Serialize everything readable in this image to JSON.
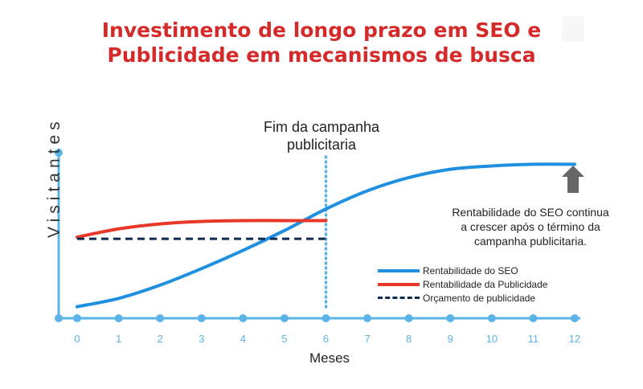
{
  "title": {
    "line1": "Investimento de longo prazo em SEO e",
    "line2": "Publicidade em mecanismos de busca"
  },
  "chart_data": {
    "type": "line",
    "xlabel": "Meses",
    "ylabel": "Visitantes",
    "x": [
      0,
      1,
      2,
      3,
      4,
      5,
      6,
      7,
      8,
      9,
      10,
      11,
      12
    ],
    "tick_labels": [
      "0",
      "1",
      "2",
      "3",
      "4",
      "5",
      "6",
      "7",
      "8",
      "9",
      "10",
      "11",
      "12"
    ],
    "xlim": [
      0,
      12
    ],
    "ylim": [
      0,
      100
    ],
    "series": [
      {
        "name": "Rentabilidade do SEO",
        "color": "#1f8fe0",
        "style": "solid",
        "x": [
          0,
          1,
          2,
          3,
          4,
          5,
          6,
          7,
          8,
          9,
          10,
          11,
          12
        ],
        "y": [
          7,
          12,
          20,
          30,
          41,
          53,
          66,
          77,
          85,
          90,
          92,
          93,
          93
        ]
      },
      {
        "name": "Rentabilidade da Publicidade",
        "color": "#e8382a",
        "style": "solid",
        "x": [
          0,
          1,
          2,
          3,
          4,
          5,
          6
        ],
        "y": [
          49,
          54,
          57,
          58.5,
          59,
          59,
          59
        ]
      },
      {
        "name": "Orçamento de publicidade",
        "color": "#0d2a4f",
        "style": "dashed",
        "x": [
          0,
          6
        ],
        "y": [
          48,
          48
        ]
      }
    ],
    "annotations": [
      {
        "text": "Fim da campanha publicitaria",
        "x": 6
      }
    ]
  },
  "labels": {
    "vline_line1": "Fim da campanha",
    "vline_line2": "publicitaria",
    "note_line1": "Rentabilidade do SEO continua",
    "note_line2": "a crescer após o término da",
    "note_line3": "campanha publicitaria."
  },
  "colors": {
    "axis": "#5ab4e8",
    "title": "#d42a2a",
    "arrow": "#666666"
  },
  "icons": {
    "arrow": "arrow-up-icon"
  }
}
